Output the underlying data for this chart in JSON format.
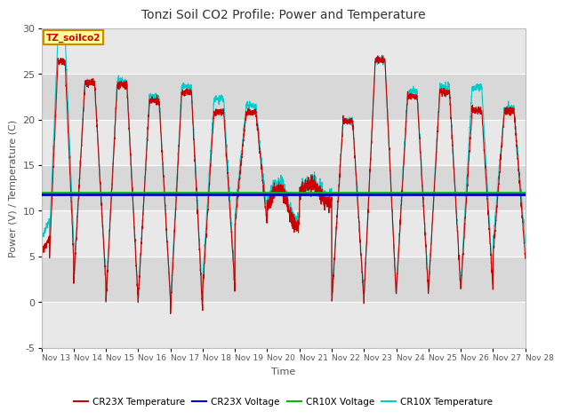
{
  "title": "Tonzi Soil CO2 Profile: Power and Temperature",
  "ylabel": "Power (V) / Temperature (C)",
  "xlabel": "Time",
  "ylim": [
    -5,
    30
  ],
  "yticks": [
    -5,
    0,
    5,
    10,
    15,
    20,
    25,
    30
  ],
  "xlim": [
    0,
    15
  ],
  "plot_bg": "#e8e8e8",
  "band_light": "#f0f0f0",
  "band_dark": "#e0e0e0",
  "cr23x_voltage_val": 11.75,
  "cr10x_voltage_val": 11.95,
  "cr23x_voltage_color": "#0000cc",
  "cr10x_voltage_color": "#00bb00",
  "cr23x_temp_color": "#cc0000",
  "cr10x_temp_color": "#00cccc",
  "annotation_text": "TZ_soilco2",
  "annotation_bg": "#ffff99",
  "annotation_border": "#cc8800",
  "annotation_text_color": "#cc0000",
  "x_tick_labels": [
    "Nov 13",
    "Nov 14",
    "Nov 15",
    "Nov 16",
    "Nov 17",
    "Nov 18",
    "Nov 19",
    "Nov 20",
    "Nov 21",
    "Nov 22",
    "Nov 23",
    "Nov 24",
    "Nov 25",
    "Nov 26",
    "Nov 27",
    "Nov 28"
  ],
  "legend_labels": [
    "CR23X Temperature",
    "CR23X Voltage",
    "CR10X Voltage",
    "CR10X Temperature"
  ],
  "legend_colors": [
    "#cc0000",
    "#0000cc",
    "#00bb00",
    "#00cccc"
  ]
}
